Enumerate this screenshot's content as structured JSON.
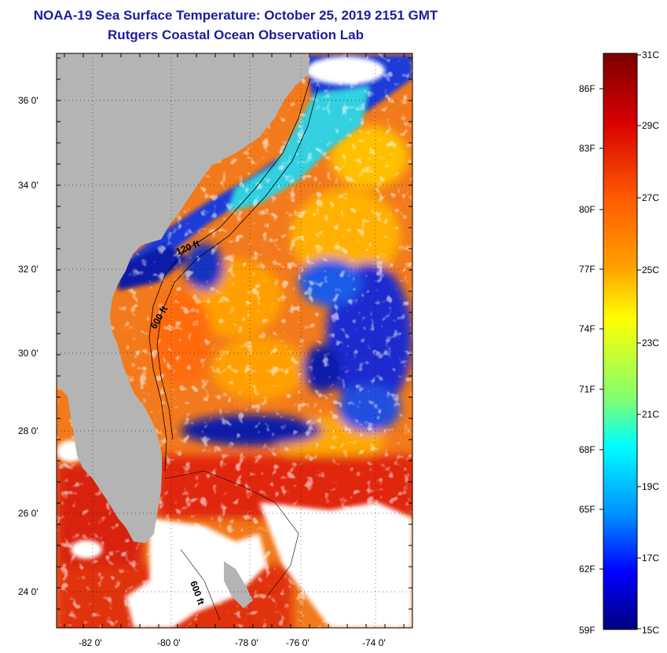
{
  "header": {
    "title": "NOAA-19 Sea Surface Temperature:  October 25, 2019 2151 GMT",
    "subtitle": "Rutgers Coastal Ocean Observation Lab"
  },
  "map": {
    "lat_labels": [
      "36 0'",
      "34 0'",
      "32 0'",
      "30 0'",
      "28 0'",
      "26 0'",
      "24 0'"
    ],
    "lon_labels": [
      "-82 0'",
      "-80 0'",
      "-78 0'",
      "-76 0'",
      "-74 0'"
    ],
    "isobaths": [
      "120 ft",
      "600 ft",
      "600 ft"
    ],
    "colors": {
      "land": "#b4b4b4",
      "cloud": "#ffffff",
      "cold": "#0a1aa8",
      "warm": "#f07818",
      "hot": "#d82010"
    }
  },
  "colorbar": {
    "celsius": [
      "31C",
      "29C",
      "27C",
      "25C",
      "23C",
      "21C",
      "19C",
      "17C",
      "15C"
    ],
    "fahrenheit": [
      "86F",
      "83F",
      "80F",
      "77F",
      "74F",
      "71F",
      "68F",
      "65F",
      "62F",
      "59F"
    ],
    "colors": [
      "#7a0000",
      "#d80000",
      "#ff5a00",
      "#ffa000",
      "#ffff00",
      "#80ff70",
      "#00ffff",
      "#0090ff",
      "#0000ff",
      "#000080"
    ]
  }
}
